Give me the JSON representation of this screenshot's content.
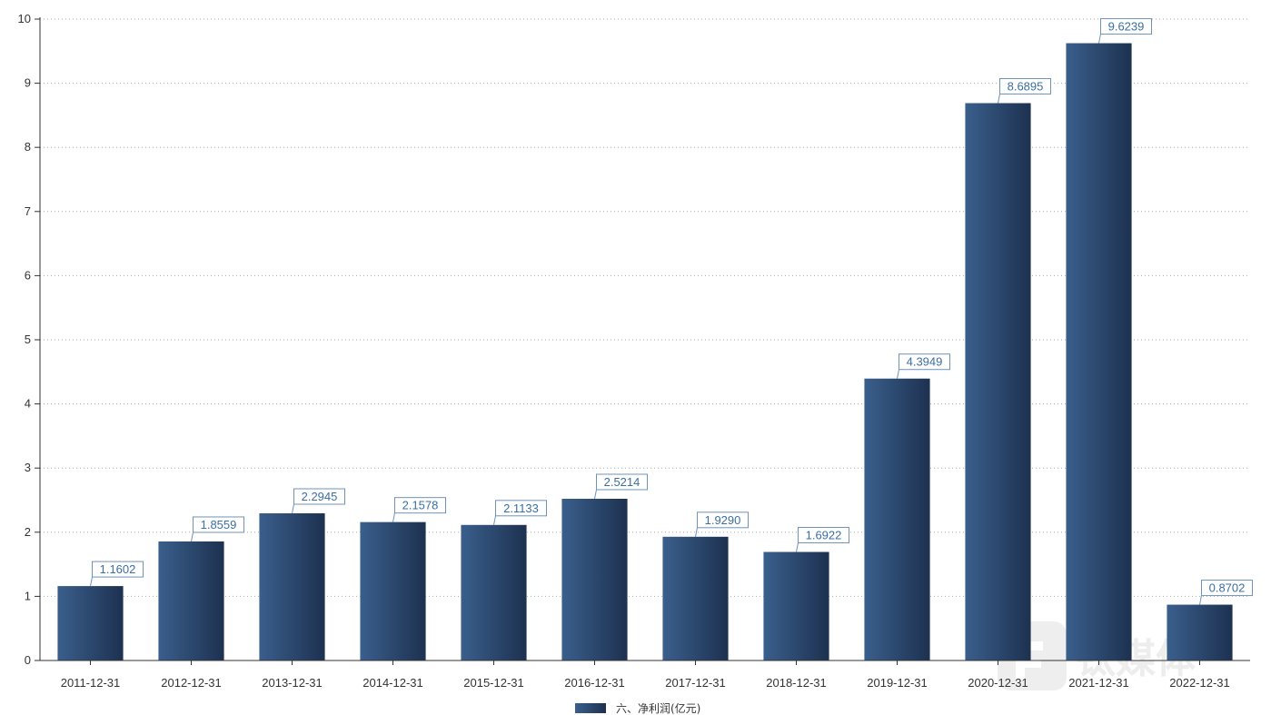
{
  "chart_data": {
    "type": "bar",
    "categories": [
      "2011-12-31",
      "2012-12-31",
      "2013-12-31",
      "2014-12-31",
      "2015-12-31",
      "2016-12-31",
      "2017-12-31",
      "2018-12-31",
      "2019-12-31",
      "2020-12-31",
      "2021-12-31",
      "2022-12-31"
    ],
    "series": [
      {
        "name": "六、净利润(亿元)",
        "values": [
          1.1602,
          1.8559,
          2.2945,
          2.1578,
          2.1133,
          2.5214,
          1.929,
          1.6922,
          4.3949,
          8.6895,
          9.6239,
          0.8702
        ],
        "value_labels": [
          "1.1602",
          "1.8559",
          "2.2945",
          "2.1578",
          "2.1133",
          "2.5214",
          "1.9290",
          "1.6922",
          "4.3949",
          "8.6895",
          "9.6239",
          "0.8702"
        ]
      }
    ],
    "yticks": [
      "0",
      "1",
      "2",
      "3",
      "4",
      "5",
      "6",
      "7",
      "8",
      "9",
      "10"
    ],
    "ylim": [
      0,
      10
    ],
    "grid": "horizontal dotted",
    "legend": "bottom-center",
    "title": "",
    "xlabel": "",
    "ylabel": ""
  },
  "colors": {
    "bar_light": "#3a5f8c",
    "bar_dark": "#1d3150",
    "label_border": "#6f93b8",
    "label_text": "#3a6fa3",
    "grid": "#aaaaaa",
    "axis": "#333333"
  },
  "watermark": {
    "icon": "tmtpost-logo-icon",
    "text": "钛媒体"
  }
}
